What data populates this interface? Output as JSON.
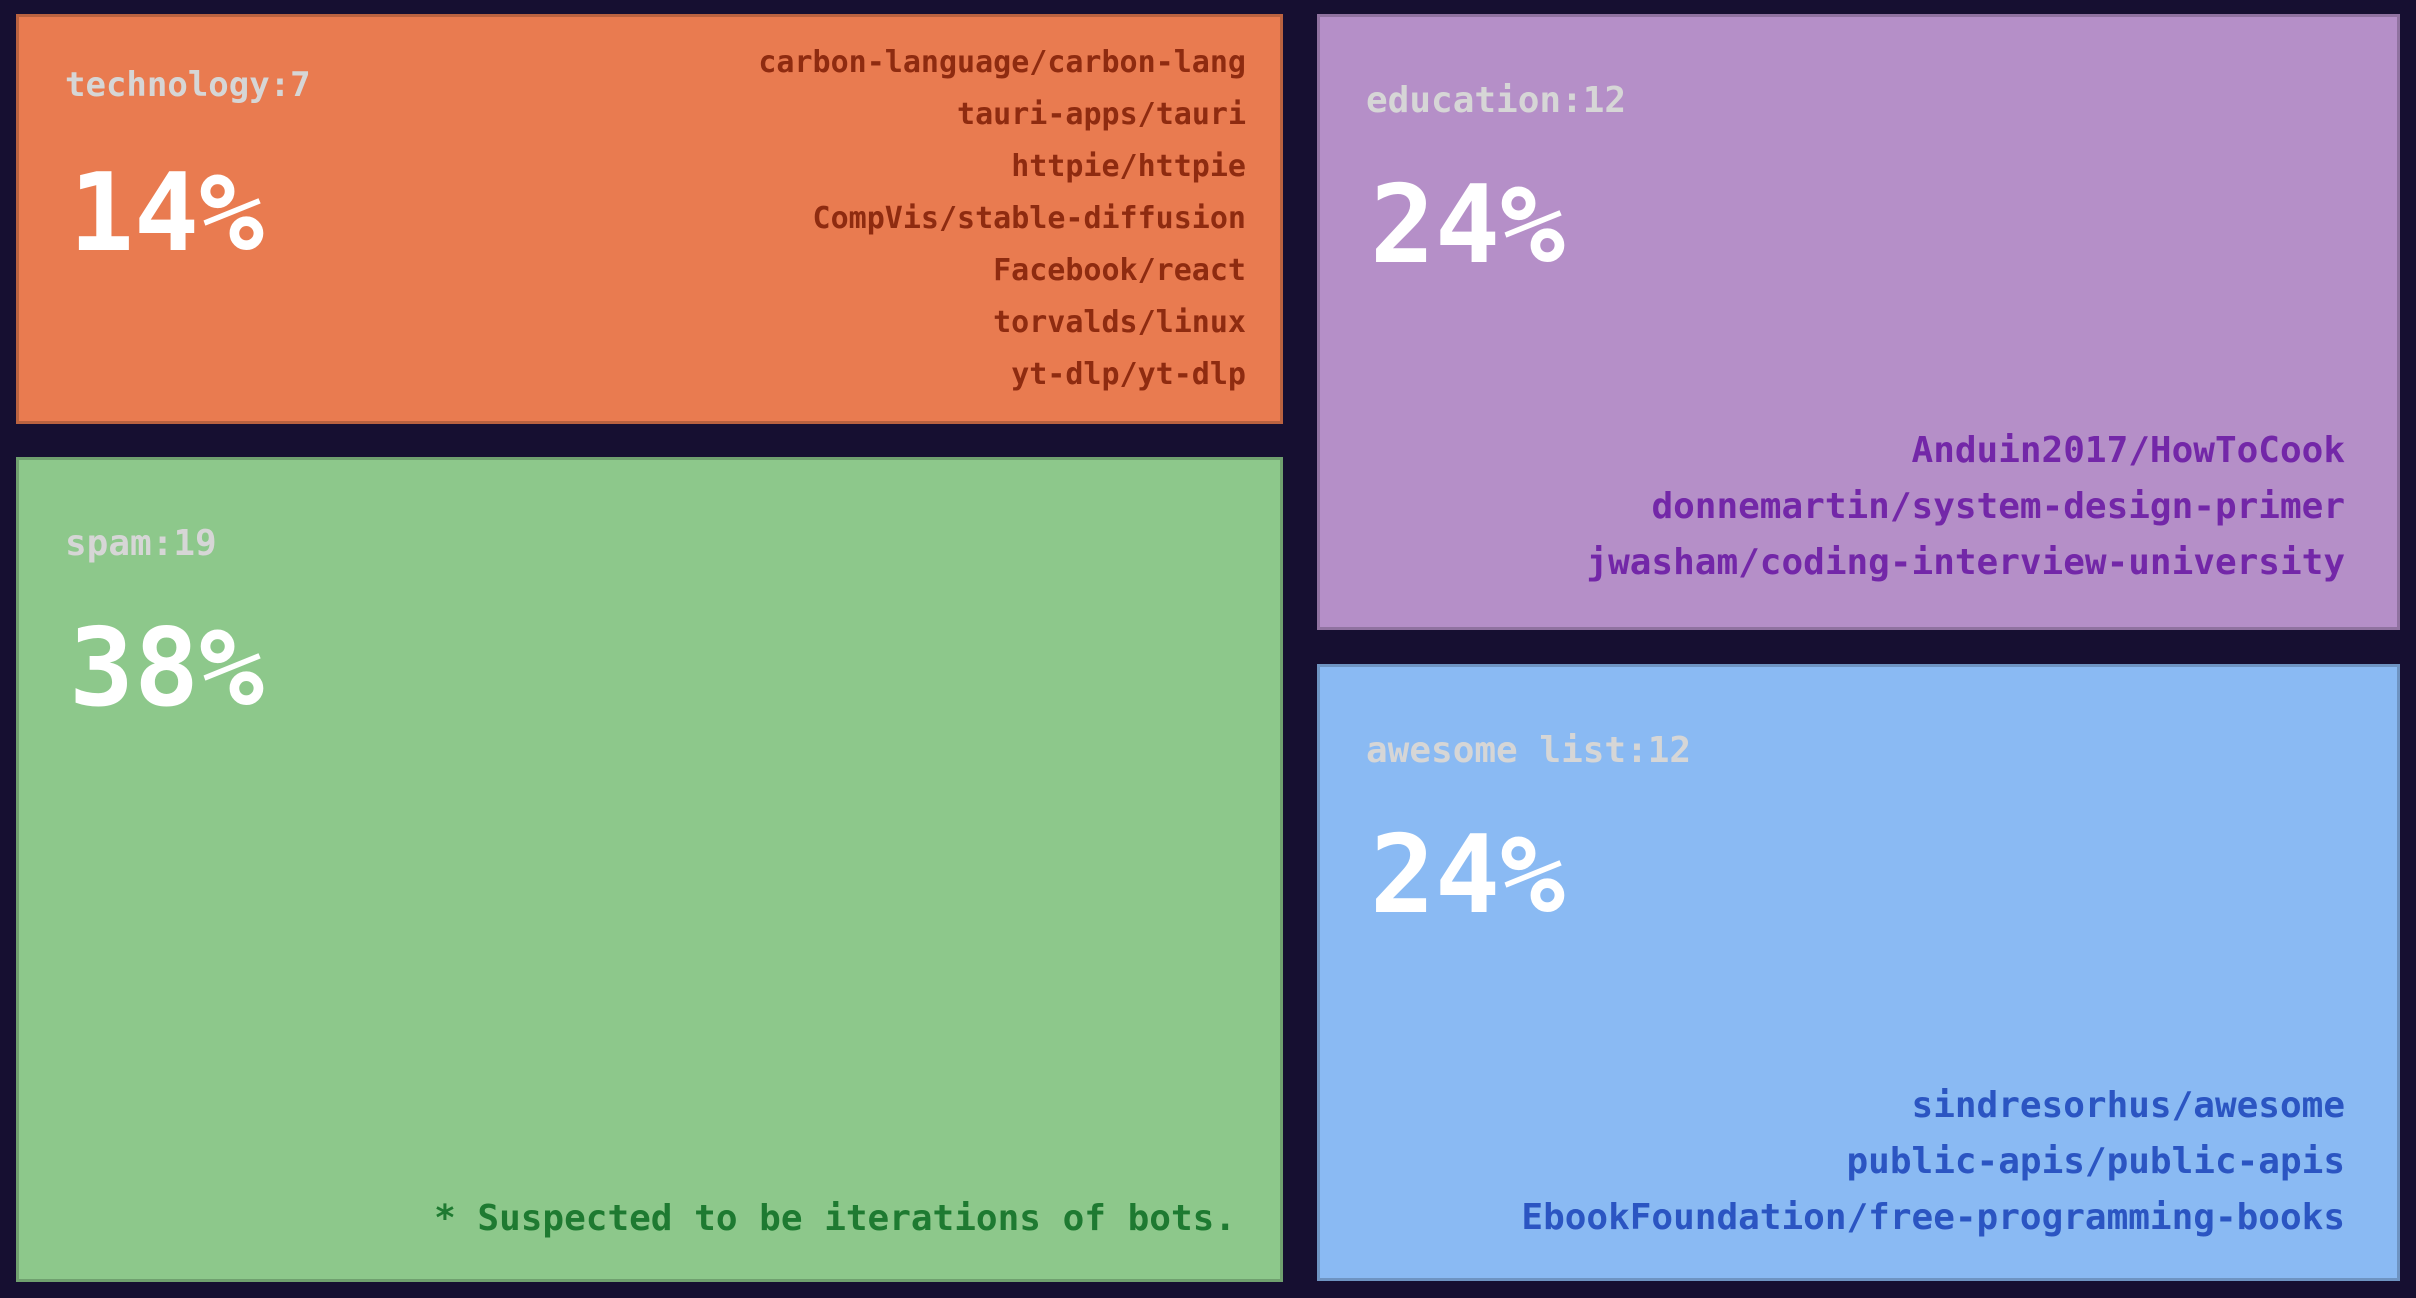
{
  "canvas": {
    "background": "#160f31"
  },
  "text_colors": {
    "label": "#d6d6d6",
    "percent": "#ffffff"
  },
  "chart_data": {
    "type": "treemap",
    "title": "",
    "legend_position": "none",
    "value_unit": "percent",
    "nodes": [
      {
        "category": "technology",
        "count": 7,
        "percent": 14,
        "repos": [
          "carbon-language/carbon-lang",
          "tauri-apps/tauri",
          "httpie/httpie",
          "CompVis/stable-diffusion",
          "Facebook/react",
          "torvalds/linux",
          "yt-dlp/yt-dlp"
        ]
      },
      {
        "category": "spam",
        "count": 19,
        "percent": 38,
        "repos": [],
        "annotation": "* Suspected to be iterations of bots."
      },
      {
        "category": "education",
        "count": 12,
        "percent": 24,
        "repos": [
          "Anduin2017/HowToCook",
          "donnemartin/system-design-primer",
          "jwasham/coding-interview-university"
        ]
      },
      {
        "category": "awesome list",
        "count": 12,
        "percent": 24,
        "repos": [
          "sindresorhus/awesome",
          "public-apis/public-apis",
          "EbookFoundation/free-programming-books"
        ]
      }
    ]
  },
  "blocks": [
    {
      "id": "technology",
      "label": "technology:7",
      "percent": "14%",
      "fill": "#e97b50",
      "item_color": "#8e2b10",
      "repos": [
        "carbon-language/carbon-lang",
        "tauri-apps/tauri",
        "httpie/httpie",
        "CompVis/stable-diffusion",
        "Facebook/react",
        "torvalds/linux",
        "yt-dlp/yt-dlp"
      ]
    },
    {
      "id": "spam",
      "label": "spam:19",
      "percent": "38%",
      "fill": "#8dc88b",
      "footnote": "* Suspected to be iterations of bots.",
      "footnote_color": "#1e7a31",
      "repos": []
    },
    {
      "id": "education",
      "label": "education:12",
      "percent": "24%",
      "fill": "#b58fc8",
      "item_color": "#7327a8",
      "repos": [
        "Anduin2017/HowToCook",
        "donnemartin/system-design-primer",
        "jwasham/coding-interview-university"
      ]
    },
    {
      "id": "awesome",
      "label": "awesome list:12",
      "percent": "24%",
      "fill": "#8abaf3",
      "item_color": "#2b55c2",
      "repos": [
        "sindresorhus/awesome",
        "public-apis/public-apis",
        "EbookFoundation/free-programming-books"
      ]
    }
  ]
}
